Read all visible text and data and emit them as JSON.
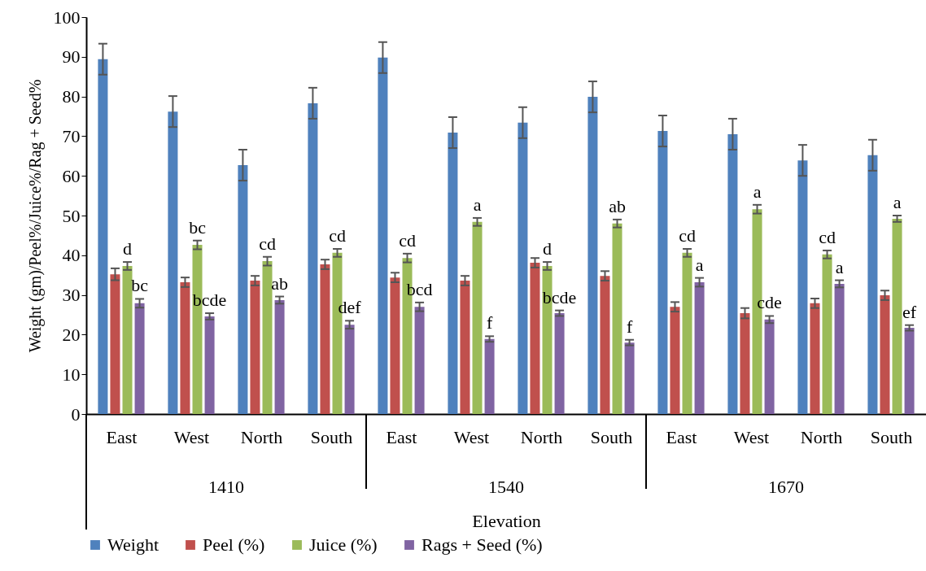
{
  "chart_data": {
    "type": "bar",
    "ylabel": "Weight (gm)/Peel%/Juice%/Rag + Seed%",
    "xlabel": "Elevation",
    "categories": [
      "East",
      "West",
      "North",
      "South",
      "East",
      "West",
      "North",
      "South",
      "East",
      "West",
      "North",
      "South"
    ],
    "annotations": [
      "1410",
      "1540",
      "1670"
    ],
    "ylim": [
      0,
      100
    ],
    "yticks": [
      0,
      10,
      20,
      30,
      40,
      50,
      60,
      70,
      80,
      90,
      100
    ],
    "grid": false,
    "legend": "bottom",
    "series": [
      {
        "name": "Weight",
        "color": "#4f81bd",
        "values": [
          89.4,
          76.2,
          62.7,
          78.3,
          89.8,
          70.9,
          73.4,
          79.9,
          71.3,
          70.5,
          63.9,
          65.2
        ],
        "errors": [
          3.9,
          3.9,
          3.9,
          3.9,
          3.9,
          3.9,
          3.9,
          3.9,
          3.9,
          3.9,
          3.9,
          3.9
        ]
      },
      {
        "name": "Peel (%)",
        "color": "#c0504d",
        "values": [
          35.2,
          33.2,
          33.6,
          37.7,
          34.4,
          33.6,
          38.1,
          34.8,
          27.0,
          25.4,
          27.9,
          29.9
        ],
        "errors": [
          1.5,
          1.2,
          1.2,
          1.2,
          1.2,
          1.2,
          1.2,
          1.2,
          1.2,
          1.3,
          1.2,
          1.2
        ]
      },
      {
        "name": "Juice (%)",
        "color": "#9bbb59",
        "values": [
          37.3,
          42.6,
          38.5,
          40.6,
          39.3,
          48.4,
          37.3,
          48.0,
          40.6,
          51.6,
          40.2,
          49.2
        ],
        "errors": [
          1.0,
          1.1,
          1.1,
          1.0,
          1.1,
          1.0,
          1.0,
          1.0,
          1.0,
          1.1,
          1.0,
          0.8
        ],
        "value_labels": [
          "d",
          "bc",
          "cd",
          "cd",
          "cd",
          "a",
          "d",
          "ab",
          "cd",
          "a",
          "cd",
          "a"
        ]
      },
      {
        "name": "Rags + Seed (%)",
        "color": "#8064a2",
        "values": [
          27.9,
          24.6,
          28.7,
          22.5,
          27.0,
          18.9,
          25.4,
          18.0,
          33.2,
          23.8,
          32.8,
          21.7
        ],
        "errors": [
          1.1,
          0.8,
          0.9,
          1.0,
          1.1,
          0.7,
          0.7,
          0.7,
          1.1,
          0.9,
          0.9,
          0.7
        ],
        "value_labels": [
          "bc",
          "bcde",
          "ab",
          "def",
          "bcd",
          "f",
          "bcde",
          "f",
          "a",
          "cde",
          "a",
          "ef"
        ]
      }
    ]
  }
}
